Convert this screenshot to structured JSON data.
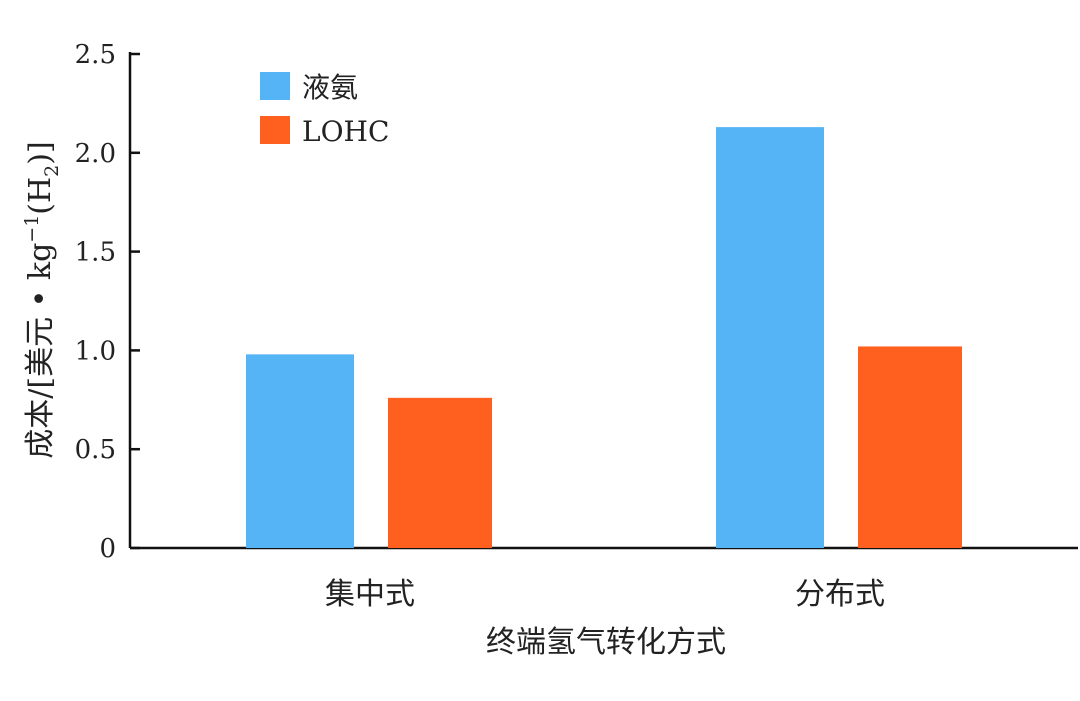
{
  "chart_data": {
    "type": "bar",
    "categories": [
      "集中式",
      "分布式"
    ],
    "series": [
      {
        "name": "液氨",
        "values": [
          0.98,
          2.13
        ],
        "color": "#55b4f5"
      },
      {
        "name": "LOHC",
        "values": [
          0.76,
          1.02
        ],
        "color": "#ff5f1f"
      }
    ],
    "xlabel": "终端氢气转化方式",
    "ylabel": {
      "main": "成本/[美元 • kg",
      "exp": "−1",
      "paren_open": "(H",
      "sub": "2",
      "paren_close": ")]"
    },
    "ylim": [
      0,
      2.5
    ],
    "yticks": [
      "0",
      "0.5",
      "1.0",
      "1.5",
      "2.0",
      "2.5"
    ],
    "ytick_values": [
      0,
      0.5,
      1.0,
      1.5,
      2.0,
      2.5
    ],
    "grid": false,
    "legend_position": "top-left"
  }
}
